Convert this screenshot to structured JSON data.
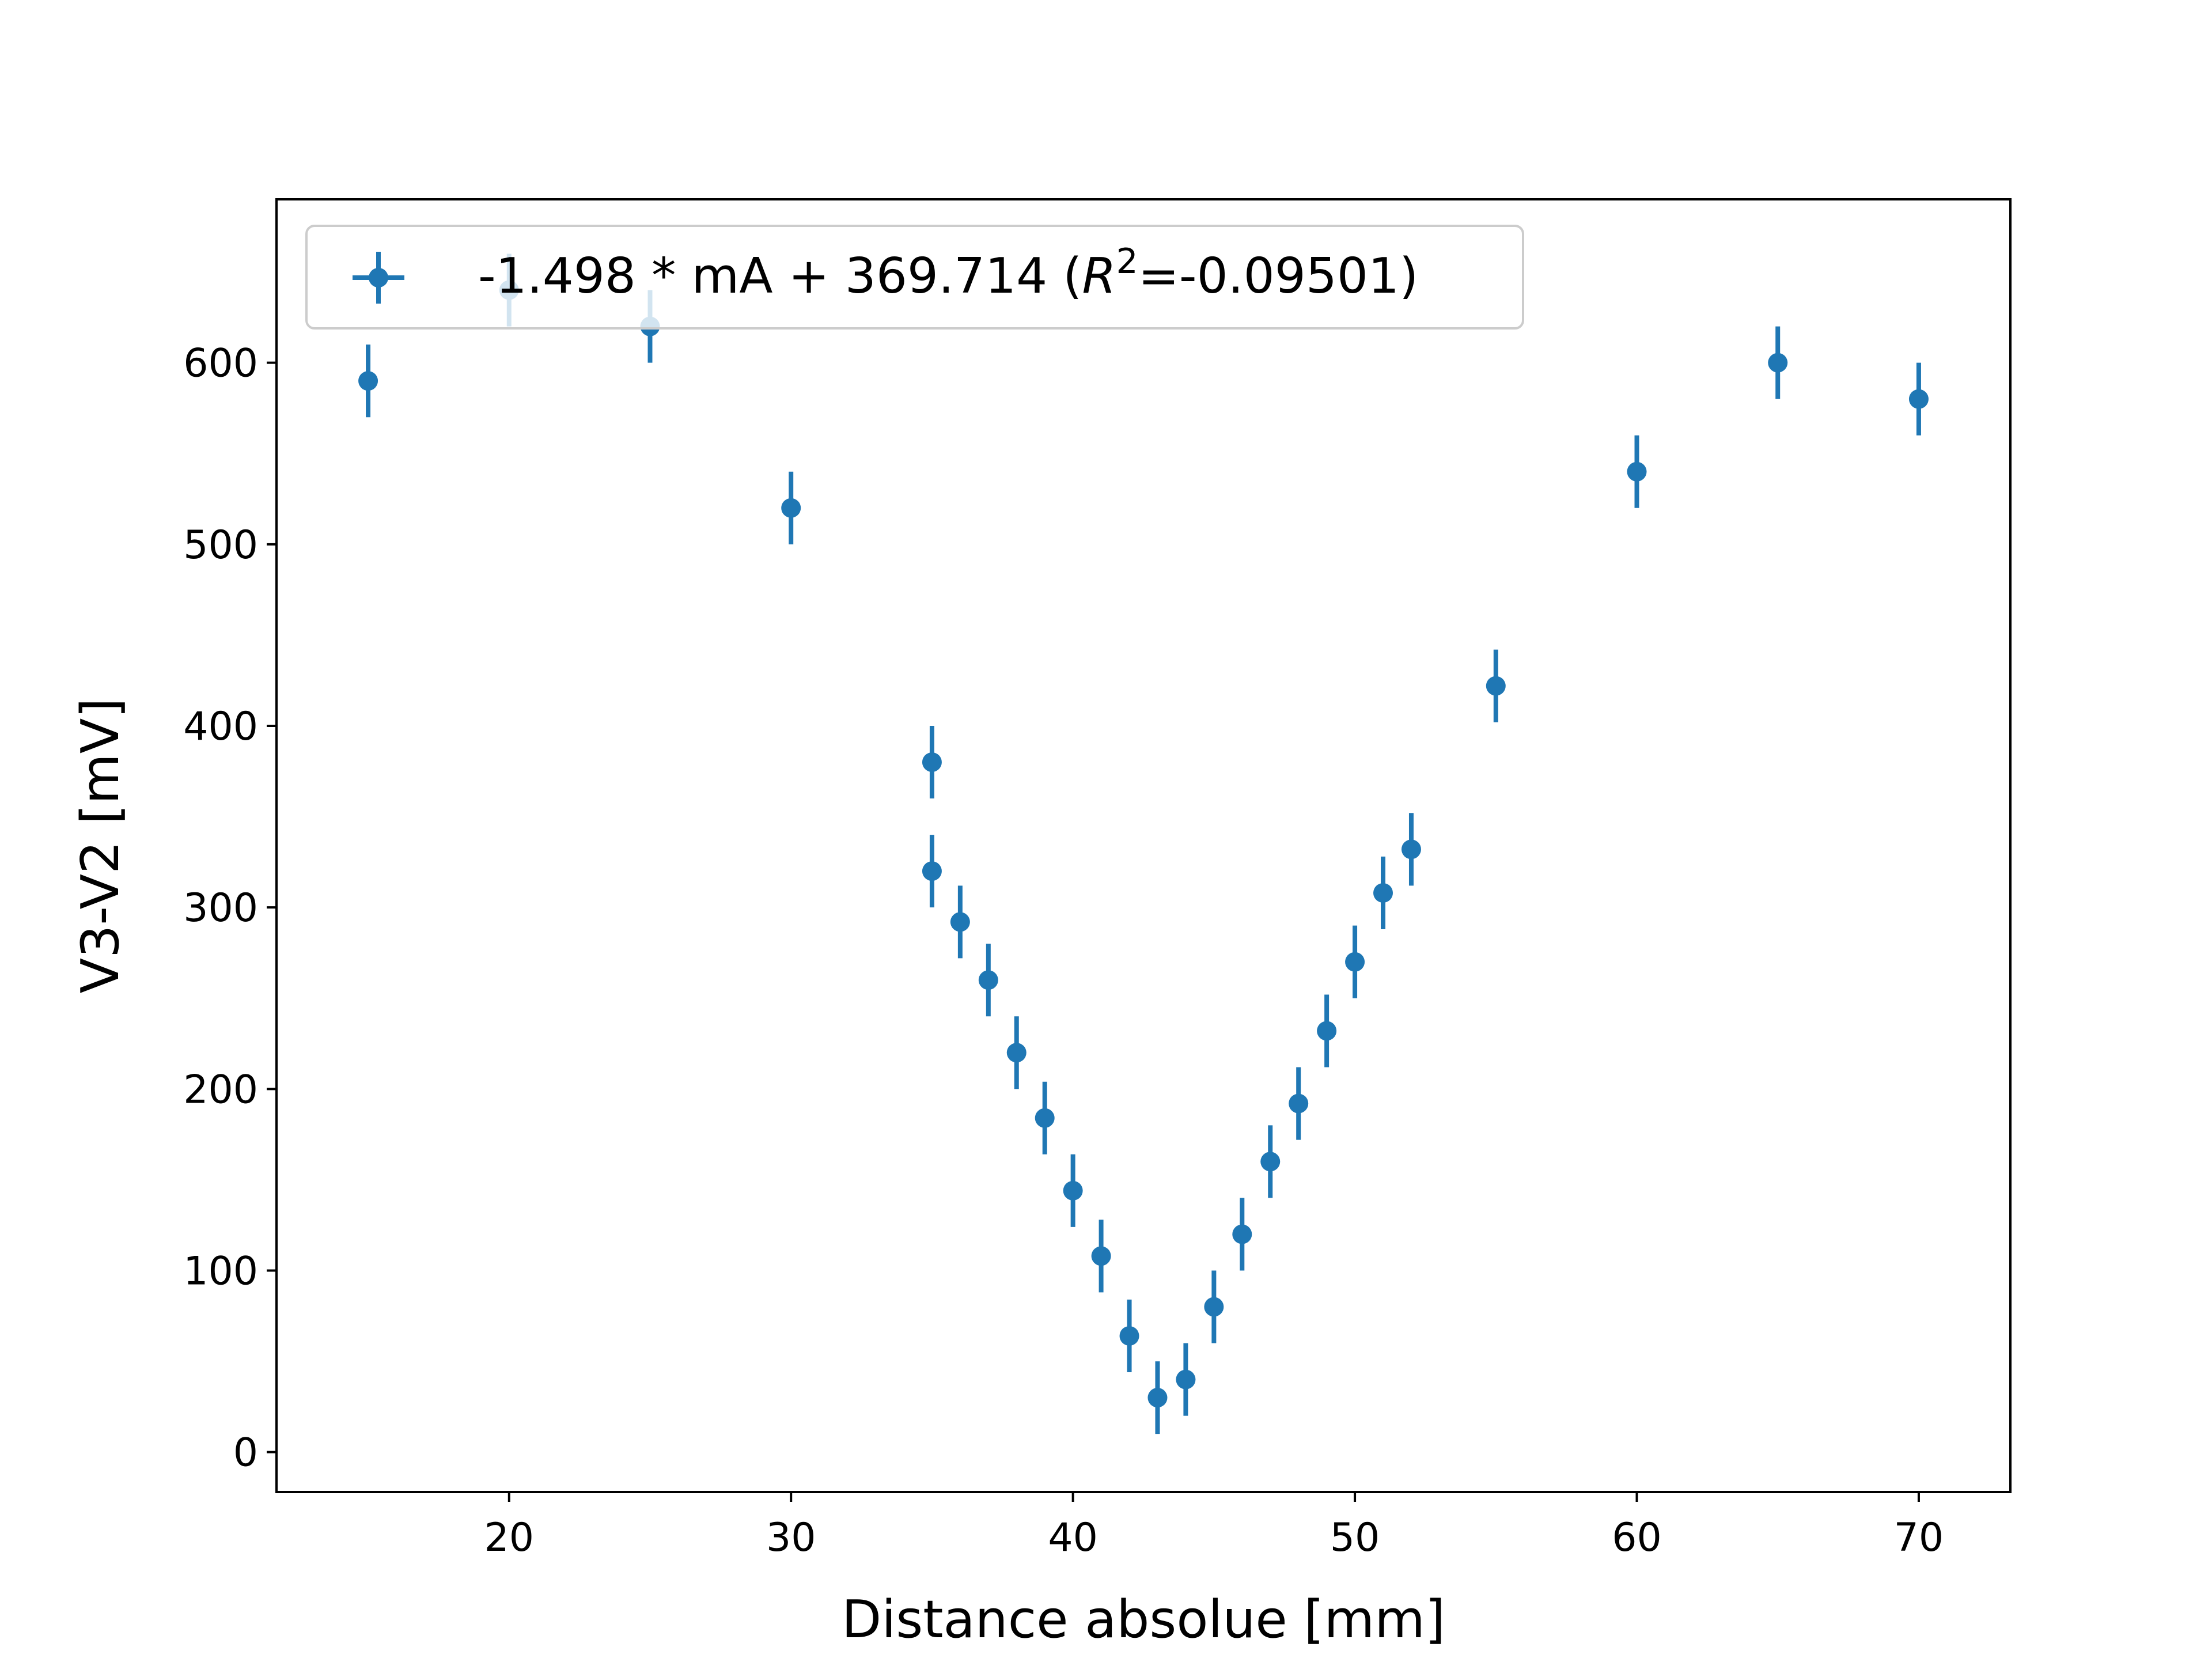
{
  "chart_data": {
    "type": "scatter",
    "xlabel": "Distance absolue [mm]",
    "ylabel": "V3-V2 [mV]",
    "xlim": [
      11.75,
      73.25
    ],
    "ylim": [
      -22,
      690
    ],
    "xticks": [
      20,
      30,
      40,
      50,
      60,
      70
    ],
    "yticks": [
      0,
      100,
      200,
      300,
      400,
      500,
      600
    ],
    "grid": false,
    "legend_position": "top-left",
    "series": [
      {
        "name_prefix": "-1.498 * mA + 369.714 (",
        "name_italic": "R",
        "name_superscript": "2",
        "name_suffix": "=-0.09501)",
        "color": "#1f77b4",
        "marker": "circle",
        "y_error": 20,
        "points": [
          {
            "x": 15,
            "y": 590
          },
          {
            "x": 20,
            "y": 640
          },
          {
            "x": 25,
            "y": 620
          },
          {
            "x": 30,
            "y": 520
          },
          {
            "x": 35,
            "y": 380
          },
          {
            "x": 35,
            "y": 320
          },
          {
            "x": 36,
            "y": 292
          },
          {
            "x": 37,
            "y": 260
          },
          {
            "x": 38,
            "y": 220
          },
          {
            "x": 39,
            "y": 184
          },
          {
            "x": 40,
            "y": 144
          },
          {
            "x": 41,
            "y": 108
          },
          {
            "x": 42,
            "y": 64
          },
          {
            "x": 43,
            "y": 30
          },
          {
            "x": 44,
            "y": 40
          },
          {
            "x": 45,
            "y": 80
          },
          {
            "x": 46,
            "y": 120
          },
          {
            "x": 47,
            "y": 160
          },
          {
            "x": 48,
            "y": 192
          },
          {
            "x": 49,
            "y": 232
          },
          {
            "x": 50,
            "y": 270
          },
          {
            "x": 51,
            "y": 308
          },
          {
            "x": 52,
            "y": 332
          },
          {
            "x": 55,
            "y": 422
          },
          {
            "x": 60,
            "y": 540
          },
          {
            "x": 65,
            "y": 600
          },
          {
            "x": 70,
            "y": 580
          }
        ]
      }
    ]
  }
}
